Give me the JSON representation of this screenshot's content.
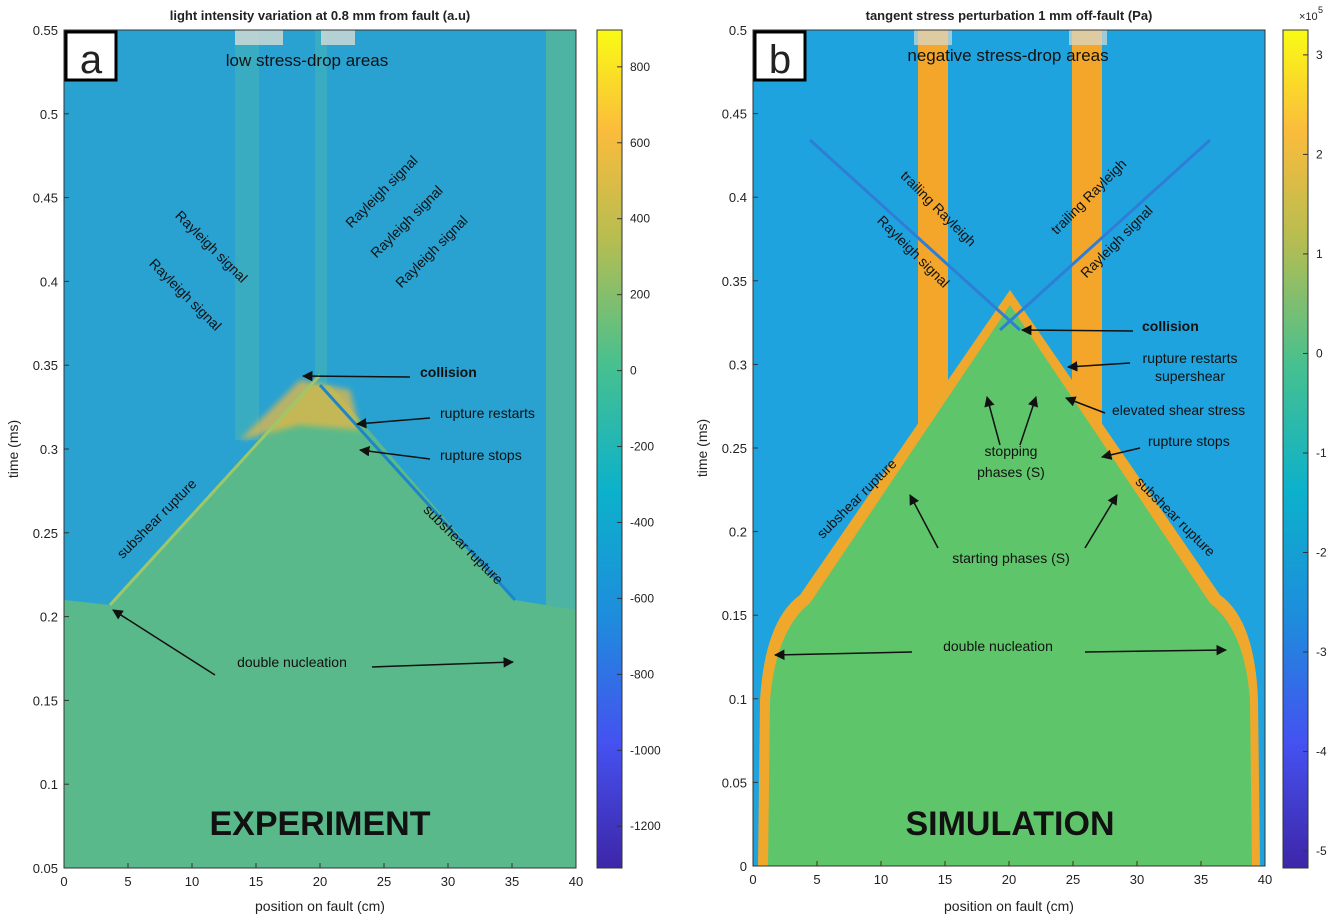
{
  "chart_data": [
    {
      "type": "heatmap",
      "title": "light intensity variation at 0.8 mm from fault (a.u)",
      "panel_label": "a",
      "xlabel": "position on fault (cm)",
      "ylabel": "time (ms)",
      "xlim": [
        0,
        40
      ],
      "xticks": [
        0,
        5,
        10,
        15,
        20,
        25,
        30,
        35,
        40
      ],
      "ylim": [
        0.05,
        0.55
      ],
      "yticks": [
        0.05,
        0.1,
        0.15,
        0.2,
        0.25,
        0.3,
        0.35,
        0.4,
        0.45,
        0.5,
        0.55
      ],
      "colorbar": {
        "lim": [
          -1310,
          897
        ],
        "ticks": [
          -1200,
          -1000,
          -800,
          -600,
          -400,
          -200,
          0,
          200,
          400,
          600,
          800
        ]
      },
      "annotations": [
        "low stress-drop areas",
        "Rayleigh signal",
        "Rayleigh signal",
        "Rayleigh signal",
        "Rayleigh signal",
        "Rayleigh signal",
        "collision",
        "rupture restarts",
        "rupture stops",
        "subshear rupture",
        "subshear rupture",
        "double nucleation",
        "EXPERIMENT"
      ]
    },
    {
      "type": "heatmap",
      "title": "tangent stress perturbation 1 mm off-fault (Pa)",
      "panel_label": "b",
      "xlabel": "position on fault (cm)",
      "ylabel": "time (ms)",
      "xlim": [
        0,
        40
      ],
      "xticks": [
        0,
        5,
        10,
        15,
        20,
        25,
        30,
        35,
        40
      ],
      "ylim": [
        0,
        0.5
      ],
      "yticks": [
        0,
        0.05,
        0.1,
        0.15,
        0.2,
        0.25,
        0.3,
        0.35,
        0.4,
        0.45,
        0.5
      ],
      "colorbar": {
        "lim": [
          -5.15,
          3.25
        ],
        "ticks": [
          -5,
          -4,
          -3,
          -2,
          -1,
          0,
          1,
          2,
          3
        ],
        "scale_base": "×10",
        "scale_exponent": "5"
      },
      "annotations": [
        "negative stress-drop areas",
        "trailing Rayleigh",
        "Rayleigh signal",
        "trailing Rayleigh",
        "Rayleigh signal",
        "collision",
        "rupture restarts",
        "supershear",
        "elevated shear stress",
        "rupture stops",
        "stopping",
        "phases (S)",
        "subshear rupture",
        "subshear rupture",
        "starting  phases (S)",
        "double nucleation",
        "SIMULATION"
      ]
    }
  ]
}
